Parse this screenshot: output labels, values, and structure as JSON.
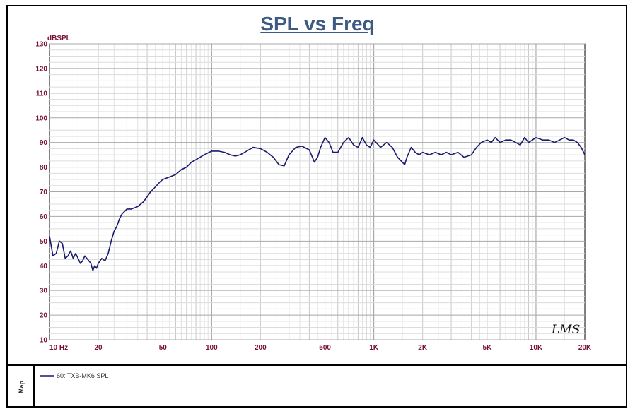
{
  "chart_data": {
    "type": "line",
    "title": "SPL vs Freq",
    "ylabel": "dBSPL",
    "x_scale": "log",
    "xlim": [
      10,
      20000
    ],
    "ylim": [
      10,
      130
    ],
    "grid": true,
    "yticks": [
      10,
      20,
      30,
      40,
      50,
      60,
      70,
      80,
      90,
      100,
      110,
      120,
      130
    ],
    "xtick_values": [
      10,
      20,
      50,
      100,
      200,
      500,
      1000,
      2000,
      5000,
      10000,
      20000
    ],
    "xtick_labels": [
      "10  Hz",
      "20",
      "50",
      "100",
      "200",
      "500",
      "1K",
      "2K",
      "5K",
      "10K",
      "20K"
    ],
    "legend_placement": "bottom-left",
    "series": [
      {
        "name": "60: TXB-MK6  SPL",
        "color": "#1a1a6e",
        "x": [
          10,
          10.5,
          11,
          11.5,
          12,
          12.5,
          13,
          13.5,
          14,
          14.5,
          15,
          15.5,
          16,
          16.5,
          17,
          17.5,
          18,
          18.5,
          19,
          19.5,
          20,
          21,
          22,
          23,
          24,
          25,
          26,
          27,
          28,
          29,
          30,
          32,
          35,
          38,
          40,
          42,
          45,
          48,
          50,
          55,
          60,
          65,
          70,
          75,
          80,
          90,
          100,
          110,
          120,
          130,
          140,
          150,
          160,
          180,
          200,
          220,
          240,
          260,
          280,
          300,
          330,
          360,
          400,
          430,
          450,
          470,
          500,
          530,
          560,
          600,
          650,
          700,
          750,
          800,
          850,
          900,
          950,
          1000,
          1100,
          1200,
          1300,
          1400,
          1500,
          1550,
          1600,
          1700,
          1800,
          1900,
          2000,
          2200,
          2400,
          2600,
          2800,
          3000,
          3300,
          3600,
          4000,
          4300,
          4600,
          5000,
          5300,
          5600,
          6000,
          6500,
          7000,
          7500,
          8000,
          8500,
          9000,
          9500,
          10000,
          11000,
          12000,
          13000,
          14000,
          15000,
          16000,
          17000,
          18000,
          19000,
          20000
        ],
        "y": [
          52,
          44,
          45,
          50,
          49,
          43,
          44,
          46,
          43,
          45,
          43,
          41,
          42,
          44,
          43,
          42,
          41,
          38,
          40,
          39,
          41,
          43,
          42,
          45,
          50,
          54,
          56,
          59,
          61,
          62,
          63,
          63,
          64,
          66,
          68,
          70,
          72,
          74,
          75,
          76,
          77,
          79,
          80,
          82,
          83,
          85,
          86.5,
          86.5,
          86,
          85,
          84.5,
          85,
          86,
          88,
          87.5,
          86,
          84,
          81,
          80.5,
          85,
          88,
          88.5,
          87,
          82,
          84,
          88,
          92,
          90,
          86,
          86,
          90,
          92,
          89,
          88,
          92,
          89,
          88,
          91,
          88,
          90,
          88,
          84,
          82,
          81,
          84,
          88,
          86,
          85,
          86,
          85,
          86,
          85,
          86,
          85,
          86,
          84,
          85,
          88,
          90,
          91,
          90,
          92,
          90,
          91,
          91,
          90,
          89,
          92,
          90,
          91,
          92,
          91,
          91,
          90,
          91,
          92,
          91,
          91,
          90,
          88,
          85
        ]
      }
    ]
  },
  "legend": {
    "section_label": "Map"
  },
  "signature": "LMS"
}
